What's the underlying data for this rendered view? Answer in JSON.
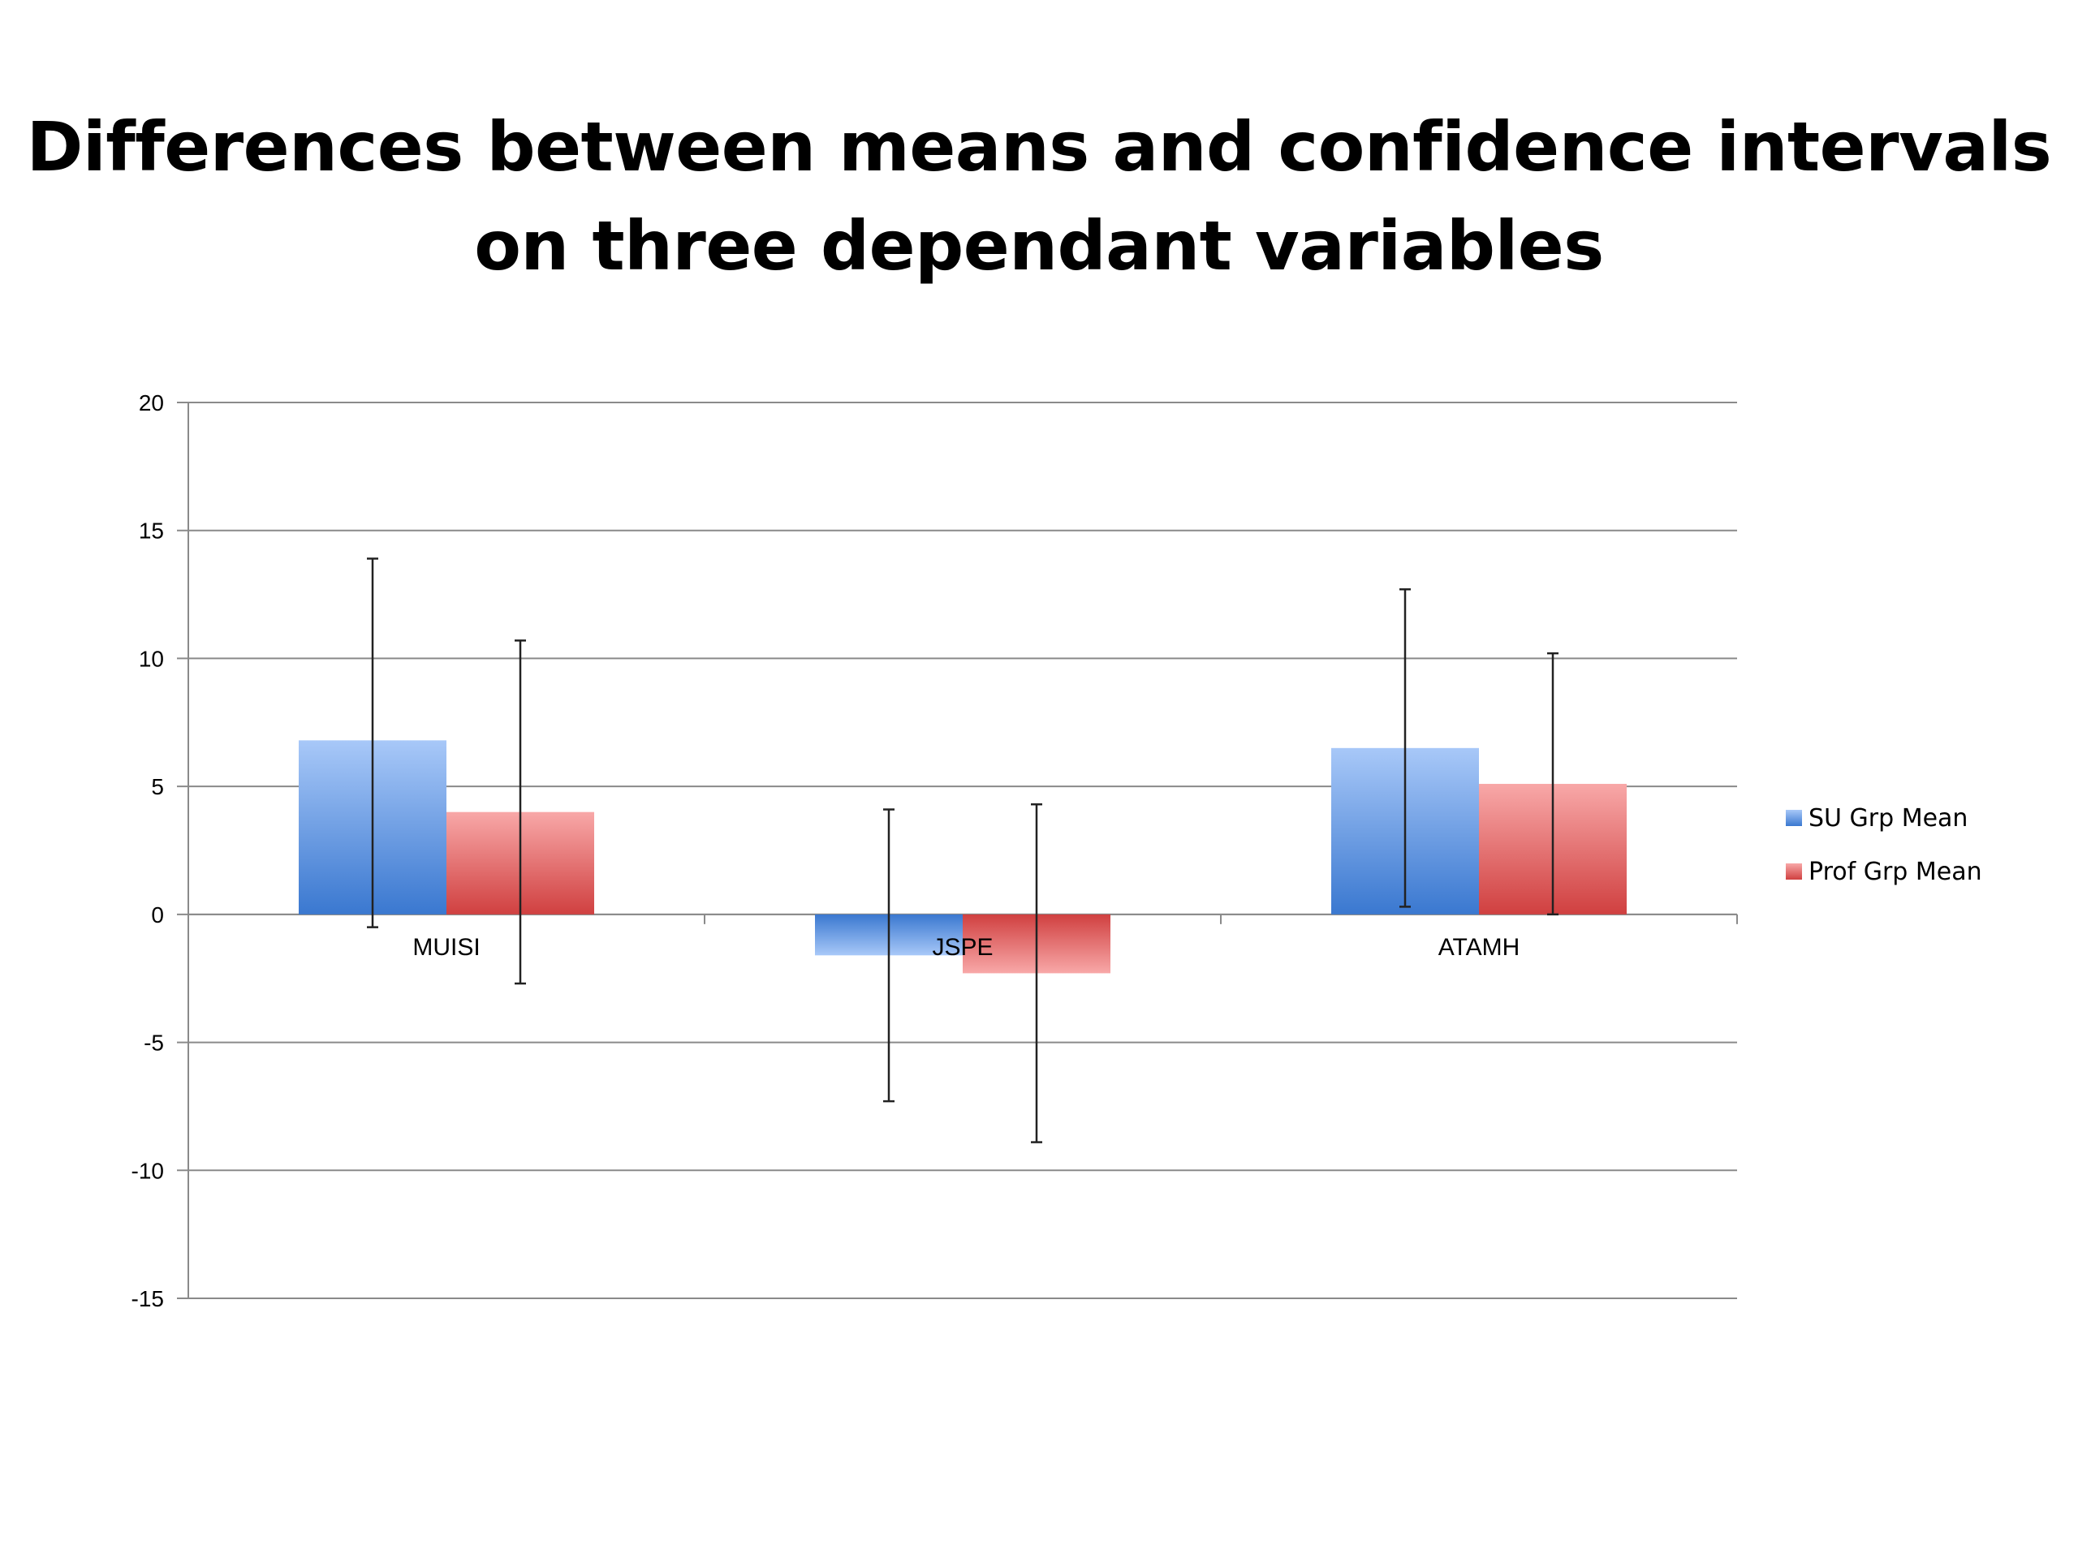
{
  "title": {
    "line1": "Differences between means and confidence intervals",
    "line2": "on three dependant variables"
  },
  "chart_data": {
    "type": "bar",
    "categories": [
      "MUISI",
      "JSPE",
      "ATAMH"
    ],
    "series": [
      {
        "name": "SU Grp Mean",
        "values": [
          6.8,
          -1.6,
          6.5
        ],
        "error_low": [
          -0.5,
          -7.3,
          0.3
        ],
        "error_high": [
          13.9,
          4.1,
          12.7
        ],
        "color": "#4a86d8"
      },
      {
        "name": "Prof Grp Mean",
        "values": [
          4.0,
          -2.3,
          5.1
        ],
        "error_low": [
          -2.7,
          -8.9,
          0.0
        ],
        "error_high": [
          10.7,
          4.3,
          10.2
        ],
        "color": "#e06060"
      }
    ],
    "ylim": [
      -15,
      20
    ],
    "yticks": [
      "20",
      "15",
      "10",
      "5",
      "0",
      "-5",
      "-10",
      "-15"
    ],
    "ytick_values": [
      20,
      15,
      10,
      5,
      0,
      -5,
      -10,
      -15
    ],
    "grid": true,
    "legend_position": "right",
    "error_bars": true
  }
}
